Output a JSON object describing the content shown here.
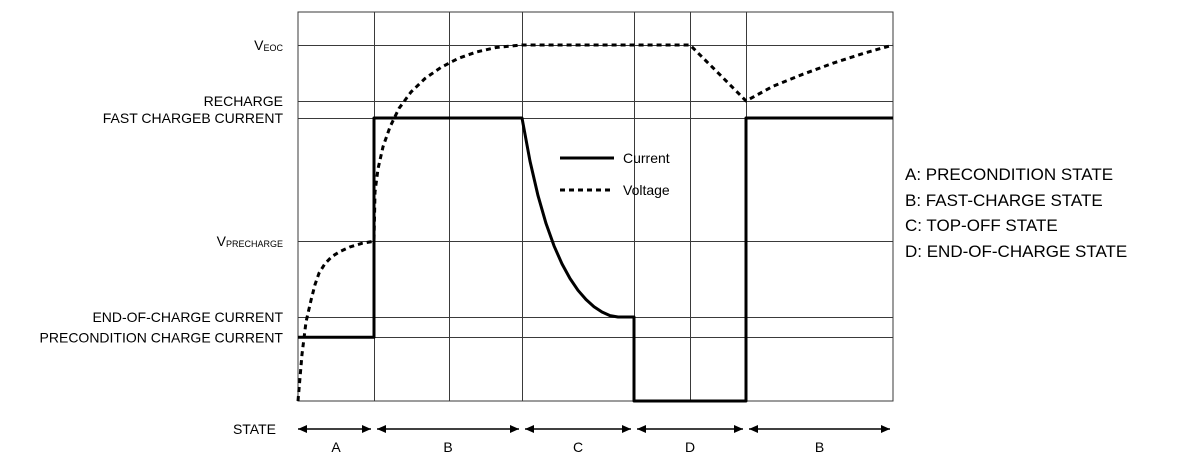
{
  "chart_data": {
    "type": "line",
    "title": "",
    "y_levels": [
      {
        "id": "veoc",
        "main": "V",
        "sub": "EOC",
        "value": 1.0
      },
      {
        "id": "recharge",
        "main": "RECHARGE",
        "sub": "",
        "value": 0.843
      },
      {
        "id": "fast",
        "main": "FAST CHARGEB CURRENT",
        "sub": "",
        "value": 0.795
      },
      {
        "id": "vpre",
        "main": "V",
        "sub": "PRECHARGE",
        "value": 0.449
      },
      {
        "id": "eoc_current",
        "main": "END-OF-CHARGE CURRENT",
        "sub": "",
        "value": 0.236
      },
      {
        "id": "precond_current",
        "main": "PRECONDITION CHARGE CURRENT",
        "sub": "",
        "value": 0.179
      }
    ],
    "x_range": [
      0,
      595
    ],
    "y_range": [
      0,
      1.1
    ],
    "phase_boundaries": [
      0,
      76,
      224,
      336,
      448,
      595
    ],
    "grid_x": [
      76,
      151,
      224,
      336,
      392,
      448
    ],
    "states": [
      {
        "label": "A",
        "start": 0,
        "end": 76
      },
      {
        "label": "B",
        "start": 76,
        "end": 224
      },
      {
        "label": "C",
        "start": 224,
        "end": 336
      },
      {
        "label": "D",
        "start": 336,
        "end": 448
      },
      {
        "label": "B",
        "start": 448,
        "end": 595
      }
    ],
    "state_axis_label": "STATE",
    "series": [
      {
        "name": "Current",
        "style": "solid",
        "points": [
          [
            0,
            0.179
          ],
          [
            76,
            0.179
          ],
          [
            76,
            0.795
          ],
          [
            224,
            0.795
          ],
          [
            232,
            0.674
          ],
          [
            240,
            0.577
          ],
          [
            248,
            0.499
          ],
          [
            256,
            0.436
          ],
          [
            264,
            0.385
          ],
          [
            272,
            0.344
          ],
          [
            280,
            0.311
          ],
          [
            288,
            0.285
          ],
          [
            296,
            0.265
          ],
          [
            304,
            0.25
          ],
          [
            312,
            0.24
          ],
          [
            320,
            0.236
          ],
          [
            336,
            0.236
          ],
          [
            336,
            0.0
          ],
          [
            448,
            0.0
          ],
          [
            448,
            0.795
          ],
          [
            595,
            0.795
          ]
        ]
      },
      {
        "name": "Voltage",
        "style": "dashed",
        "points": [
          [
            0,
            0.0
          ],
          [
            4,
            0.131
          ],
          [
            8,
            0.222
          ],
          [
            13,
            0.283
          ],
          [
            17,
            0.327
          ],
          [
            21,
            0.359
          ],
          [
            27,
            0.386
          ],
          [
            34,
            0.406
          ],
          [
            42,
            0.42
          ],
          [
            52,
            0.433
          ],
          [
            64,
            0.443
          ],
          [
            76,
            0.449
          ],
          [
            77,
            0.587
          ],
          [
            80,
            0.652
          ],
          [
            85,
            0.714
          ],
          [
            92,
            0.77
          ],
          [
            101,
            0.822
          ],
          [
            113,
            0.868
          ],
          [
            127,
            0.906
          ],
          [
            143,
            0.937
          ],
          [
            160,
            0.962
          ],
          [
            178,
            0.98
          ],
          [
            198,
            0.993
          ],
          [
            224,
            1.0
          ],
          [
            392,
            1.0
          ],
          [
            420,
            0.922
          ],
          [
            448,
            0.843
          ],
          [
            475,
            0.884
          ],
          [
            505,
            0.918
          ],
          [
            535,
            0.949
          ],
          [
            565,
            0.976
          ],
          [
            595,
            1.0
          ]
        ]
      }
    ],
    "legend": {
      "position": "inside-center",
      "items": [
        {
          "name": "Current",
          "style": "solid"
        },
        {
          "name": "Voltage",
          "style": "dashed"
        }
      ]
    },
    "state_definitions": [
      "A: PRECONDITION STATE",
      "B: FAST-CHARGE STATE",
      "C: TOP-OFF STATE",
      "D: END-OF-CHARGE STATE"
    ],
    "grid": true
  }
}
